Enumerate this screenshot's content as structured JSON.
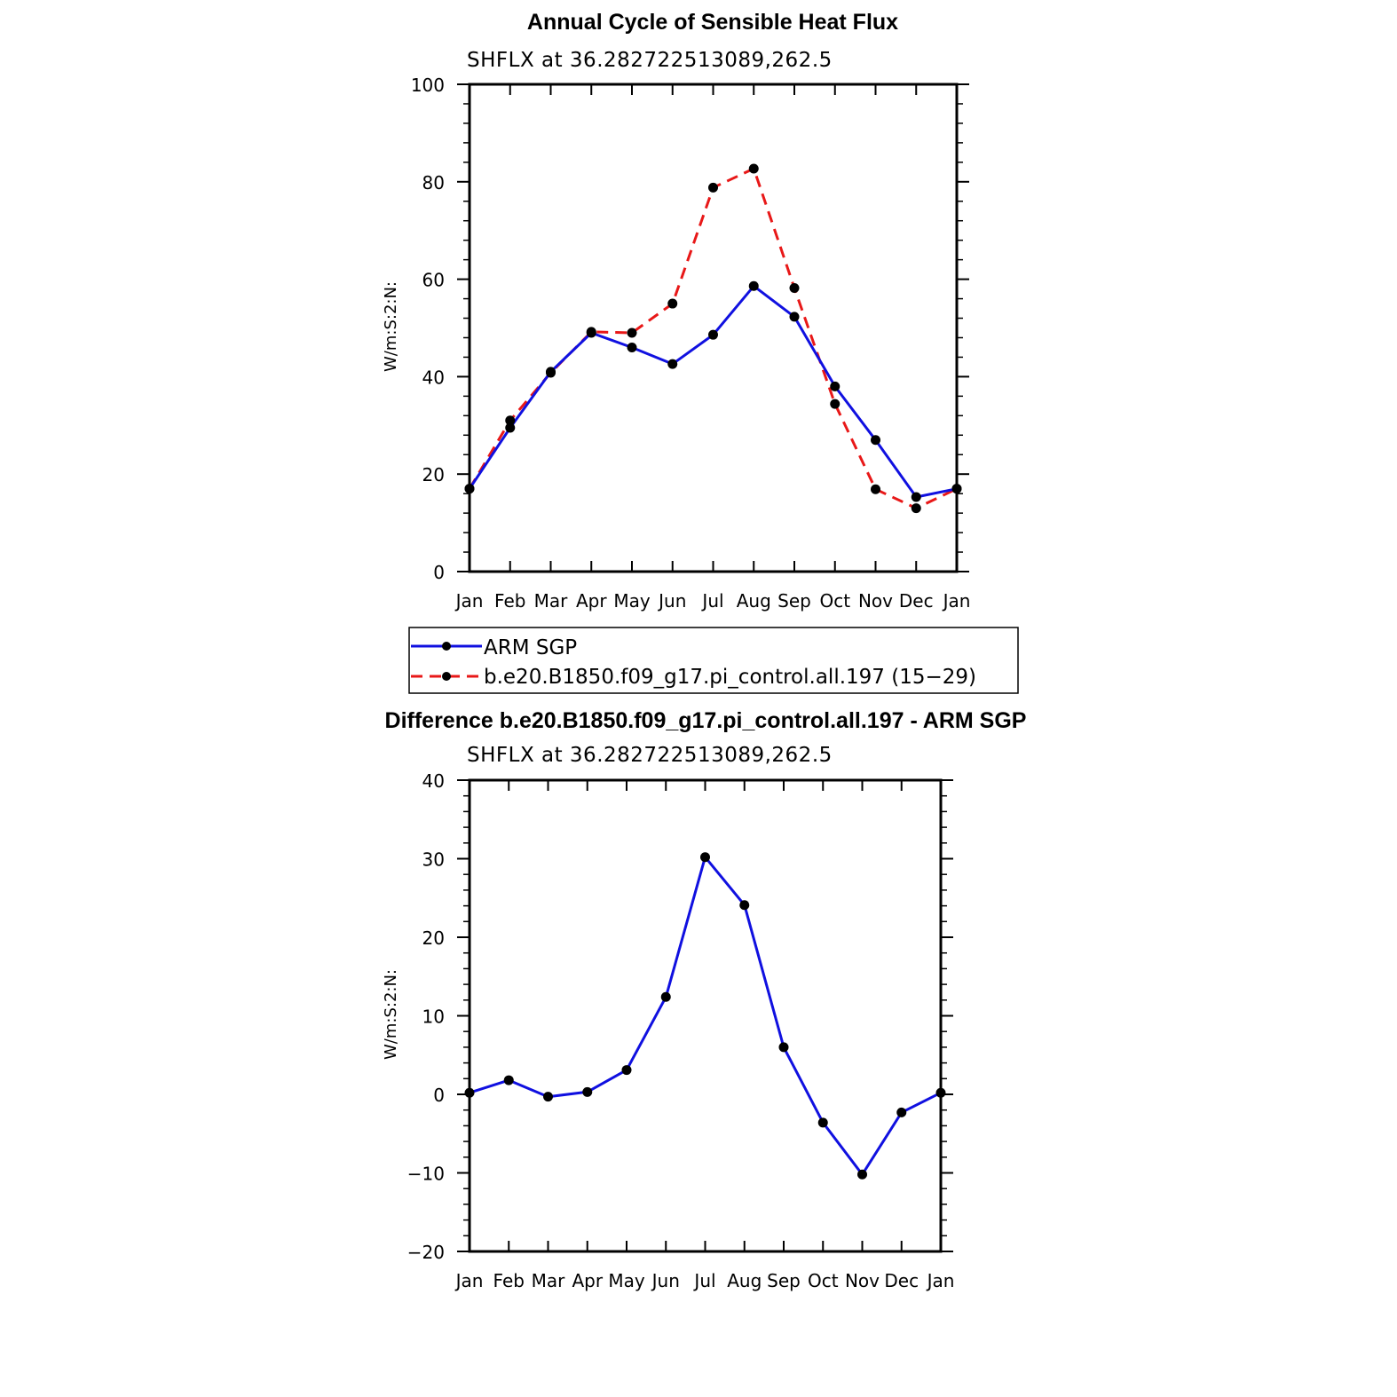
{
  "colors": {
    "arm": "#1010e0",
    "model": "#e81818",
    "diff": "#1010e0",
    "marker": "#000000"
  },
  "chart_data": [
    {
      "type": "line",
      "title": "Annual Cycle of Sensible Heat Flux",
      "subtitle": "SHFLX  at  36.282722513089,262.5",
      "ylabel": "W/m:S:2:N:",
      "categories": [
        "Jan",
        "Feb",
        "Mar",
        "Apr",
        "May",
        "Jun",
        "Jul",
        "Aug",
        "Sep",
        "Oct",
        "Nov",
        "Dec",
        "Jan"
      ],
      "ylim": [
        0,
        100
      ],
      "yticks": [
        "0",
        "20",
        "40",
        "60",
        "80",
        "100"
      ],
      "series": [
        {
          "name": "ARM  SGP",
          "style": "solid",
          "color": "#1010e0",
          "values": [
            17,
            29.5,
            41,
            49,
            46,
            42.6,
            48.6,
            58.6,
            52.3,
            38,
            27,
            15.3,
            17
          ]
        },
        {
          "name": "b.e20.B1850.f09_g17.pi_control.all.197 (15−29)",
          "style": "dashed",
          "color": "#e81818",
          "values": [
            17,
            31,
            40.8,
            49.2,
            49,
            55,
            78.8,
            82.7,
            58.2,
            34.4,
            16.9,
            13,
            17
          ]
        }
      ],
      "legend": "below"
    },
    {
      "type": "line",
      "title": "Difference b.e20.B1850.f09_g17.pi_control.all.197 - ARM SGP",
      "subtitle": "SHFLX  at  36.282722513089,262.5",
      "ylabel": "W/m:S:2:N:",
      "categories": [
        "Jan",
        "Feb",
        "Mar",
        "Apr",
        "May",
        "Jun",
        "Jul",
        "Aug",
        "Sep",
        "Oct",
        "Nov",
        "Dec",
        "Jan"
      ],
      "ylim": [
        -20,
        40
      ],
      "yticks": [
        "−20",
        "−10",
        "0",
        "10",
        "20",
        "30",
        "40"
      ],
      "series": [
        {
          "style": "solid",
          "color": "#1010e0",
          "values": [
            0.2,
            1.8,
            -0.3,
            0.3,
            3.1,
            12.4,
            30.2,
            24.1,
            6,
            -3.6,
            -10.2,
            -2.3,
            0.2
          ]
        }
      ]
    }
  ]
}
